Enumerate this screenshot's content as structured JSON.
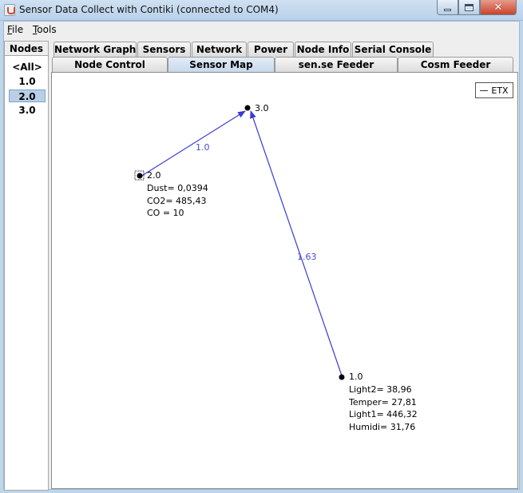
{
  "window": {
    "title": "Sensor Data Collect with Contiki (connected to COM4)"
  },
  "menu": {
    "items": [
      {
        "mnemonic": "F",
        "rest": "ile"
      },
      {
        "mnemonic": "T",
        "rest": "ools"
      }
    ]
  },
  "nodes": {
    "header": "Nodes",
    "items": [
      "<All>",
      "1.0",
      "2.0",
      "3.0"
    ],
    "selected": "2.0"
  },
  "tabs": {
    "row1": [
      "Network Graph",
      "Sensors",
      "Network",
      "Power",
      "Node Info",
      "Serial Console"
    ],
    "row2": [
      "Node Control",
      "Sensor Map",
      "sen.se Feeder",
      "Cosm Feeder"
    ],
    "active": "Sensor Map"
  },
  "map": {
    "legend": "ETX",
    "edge_color": "#3b3bd6",
    "sensors": [
      {
        "id": "3.0",
        "lines": []
      },
      {
        "id": "2.0",
        "lines": [
          "Dust= 0,0394",
          "CO2= 485,43",
          "CO = 10"
        ]
      },
      {
        "id": "1.0",
        "lines": [
          "Light2= 38,96",
          "Temper= 27,81",
          "Light1= 446,32",
          "Humidi= 31,76"
        ]
      }
    ],
    "edges": [
      {
        "from": "2.0",
        "to": "3.0",
        "label": "1.0"
      },
      {
        "from": "1.0",
        "to": "3.0",
        "label": "1.63"
      }
    ]
  }
}
